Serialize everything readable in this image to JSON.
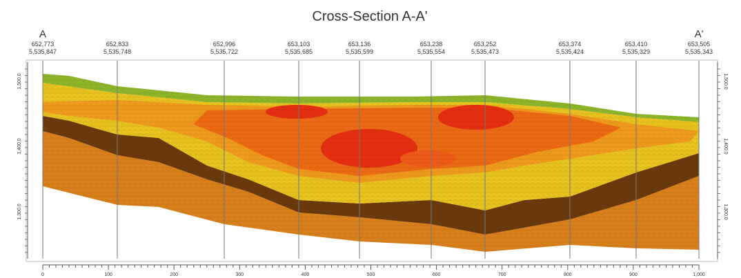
{
  "title": "Cross-Section A-A'",
  "section_start": "A",
  "section_end": "A'",
  "wells": [
    {
      "easting": "652,773",
      "northing": "5,535,847"
    },
    {
      "easting": "652,833",
      "northing": "5,535,748"
    },
    {
      "easting": "652,996",
      "northing": "5,535,722"
    },
    {
      "easting": "653,103",
      "northing": "5,535,685"
    },
    {
      "easting": "653,136",
      "northing": "5,535,599"
    },
    {
      "easting": "653,238",
      "northing": "5,535,554"
    },
    {
      "easting": "653,252",
      "northing": "5,535,473"
    },
    {
      "easting": "653,374",
      "northing": "5,535,424"
    },
    {
      "easting": "653,410",
      "northing": "5,535,329"
    },
    {
      "easting": "653,505",
      "northing": "5,535,343"
    }
  ],
  "x_axis": {
    "labels": [
      "0",
      "100",
      "200",
      "300",
      "400",
      "500",
      "600",
      "700",
      "800",
      "900",
      "1,000"
    ]
  },
  "y_axis": {
    "labels": [
      "1,500.0",
      "1,400.0",
      "1,300.0"
    ]
  }
}
